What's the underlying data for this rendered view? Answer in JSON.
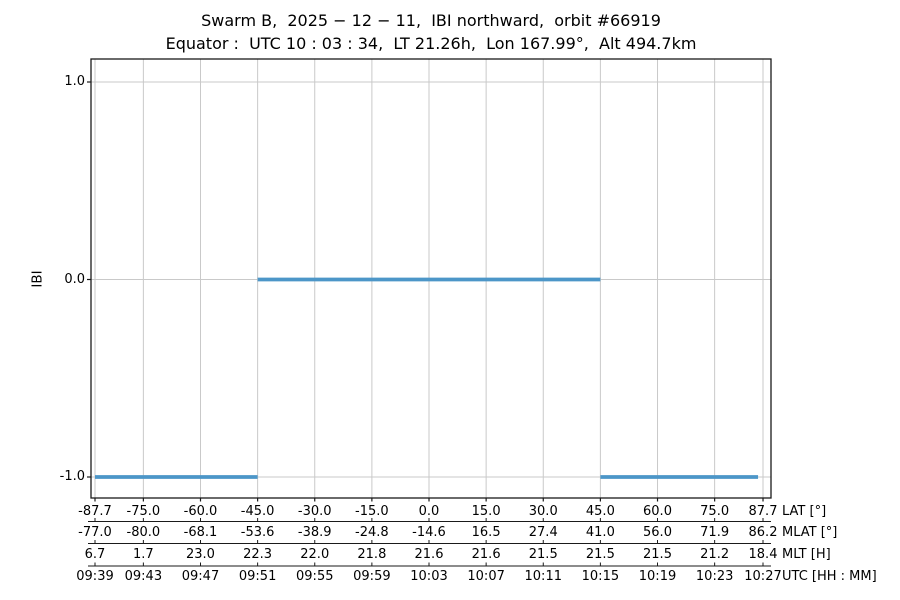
{
  "title": "Swarm B,  2025 − 12 − 11,  IBI northward,  orbit #66919",
  "subtitle": "Equator :  UTC 10 : 03 : 34,  LT 21.26h,  Lon 167.99°,  Alt 494.7km",
  "chart_data": {
    "type": "line",
    "subtype": "step",
    "title": "Swarm B,  2025 − 12 − 11,  IBI northward,  orbit #66919",
    "subtitle": "Equator :  UTC 10 : 03 : 34,  LT 21.26h,  Lon 167.99°,  Alt 494.7km",
    "ylabel": "IBI",
    "yticks": [
      "1.0",
      "0.0",
      "-1.0"
    ],
    "ytick_values": [
      1.0,
      0.0,
      -1.0
    ],
    "ylim": [
      -1.11,
      1.11
    ],
    "grid": true,
    "grid_color": "#c9c9c9",
    "line_color": "#4c96c8",
    "frame_color": "#1a1a1a",
    "x_axis_variable": "LAT [°]",
    "xlim": [
      -88.8,
      89.8
    ],
    "tick_lats": [
      -87.7,
      -75,
      -60,
      -45,
      -30,
      -15,
      0,
      15,
      30,
      45,
      60,
      75,
      87.7
    ],
    "segments": [
      {
        "y": -1.0,
        "lat_start": -87.7,
        "lat_end": -45.0
      },
      {
        "y": 0.0,
        "lat_start": -45.0,
        "lat_end": 45.0
      },
      {
        "y": -1.0,
        "lat_start": 45.0,
        "lat_end": 86.4
      }
    ],
    "axis_rows": [
      {
        "label": "LAT [°]",
        "values": [
          "-87.7",
          "-75.0",
          "-60.0",
          "-45.0",
          "-30.0",
          "-15.0",
          "0.0",
          "15.0",
          "30.0",
          "45.0",
          "60.0",
          "75.0",
          "87.7"
        ]
      },
      {
        "label": "MLAT [°]",
        "values": [
          "-77.0",
          "-80.0",
          "-68.1",
          "-53.6",
          "-38.9",
          "-24.8",
          "-14.6",
          "16.5",
          "27.4",
          "41.0",
          "56.0",
          "71.9",
          "86.2"
        ]
      },
      {
        "label": "MLT [H]",
        "values": [
          "6.7",
          "1.7",
          "23.0",
          "22.3",
          "22.0",
          "21.8",
          "21.6",
          "21.6",
          "21.5",
          "21.5",
          "21.5",
          "21.2",
          "18.4"
        ]
      },
      {
        "label": "UTC [HH : MM]",
        "values": [
          "09:39",
          "09:43",
          "09:47",
          "09:51",
          "09:55",
          "09:59",
          "10:03",
          "10:07",
          "10:11",
          "10:15",
          "10:19",
          "10:23",
          "10:27"
        ]
      }
    ]
  }
}
